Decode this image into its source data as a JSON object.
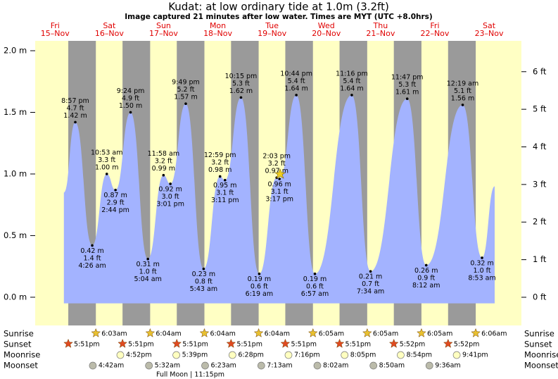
{
  "chart_data": {
    "type": "area",
    "title": "Kudat: at low  ordinary tide at 1.0m (3.2ft)",
    "subtitle": "Image captured 21 minutes after low water. Times are MYT (UTC +8.0hrs)",
    "days": [
      {
        "weekday": "Fri",
        "date": "15–Nov"
      },
      {
        "weekday": "Sat",
        "date": "16–Nov"
      },
      {
        "weekday": "Sun",
        "date": "17–Nov"
      },
      {
        "weekday": "Mon",
        "date": "18–Nov"
      },
      {
        "weekday": "Tue",
        "date": "19–Nov"
      },
      {
        "weekday": "Wed",
        "date": "20–Nov"
      },
      {
        "weekday": "Thu",
        "date": "21–Nov"
      },
      {
        "weekday": "Fri",
        "date": "22–Nov"
      },
      {
        "weekday": "Sat",
        "date": "23–Nov"
      }
    ],
    "ylim": [
      -0.229,
      2.08
    ],
    "yticks": [
      {
        "value": 0,
        "label": "0.0 m"
      },
      {
        "value": 0.5,
        "label": "0.5 m"
      },
      {
        "value": 1,
        "label": "1.0 m"
      },
      {
        "value": 1.5,
        "label": "1.5 m"
      },
      {
        "value": 2,
        "label": "2.0 m"
      }
    ],
    "y2lim": [
      -0.75,
      6.82
    ],
    "y2ticks": [
      {
        "value": 0,
        "label": "0 ft"
      },
      {
        "value": 1,
        "label": "1 ft"
      },
      {
        "value": 2,
        "label": "2 ft"
      },
      {
        "value": 3,
        "label": "3 ft"
      },
      {
        "value": 4,
        "label": "4 ft"
      },
      {
        "value": 5,
        "label": "5 ft"
      },
      {
        "value": 6,
        "label": "6 ft"
      }
    ],
    "color": "#a3b3ff",
    "day_color": "#ffffc4",
    "night_color": "#9a9a9a",
    "start_value": 0.85,
    "end_value": 0.9,
    "extremes": {
      "times": [
        "8:57 pm",
        "4:26 am",
        "10:53 am",
        "2:44 pm",
        "9:24 pm",
        "5:04 am",
        "11:58 am",
        "3:01 pm",
        "9:49 pm",
        "5:43 am",
        "12:59 pm",
        "3:11 pm",
        "10:15 pm",
        "6:19 am",
        "2:03 pm",
        "3:17 pm",
        "10:44 pm",
        "6:57 am",
        "11:16 pm",
        "7:34 am",
        "11:47 pm",
        "8:12 am",
        "12:19 am",
        "8:53 am"
      ],
      "values": [
        1.42,
        0.42,
        1.0,
        0.87,
        1.5,
        0.31,
        0.99,
        0.92,
        1.57,
        0.23,
        0.98,
        0.95,
        1.62,
        0.19,
        0.97,
        0.96,
        1.64,
        0.19,
        1.64,
        0.21,
        1.61,
        0.26,
        1.56,
        0.32
      ],
      "value_labels": [
        "1.42 m",
        "0.42 m",
        "1.00 m",
        "0.87 m",
        "1.50 m",
        "0.31 m",
        "0.99 m",
        "0.92 m",
        "1.57 m",
        "0.23 m",
        "0.98 m",
        "0.95 m",
        "1.62 m",
        "0.19 m",
        "0.97 m",
        "0.96 m",
        "1.64 m",
        "0.19 m",
        "1.64 m",
        "0.21 m",
        "1.61 m",
        "0.26 m",
        "1.56 m",
        "0.32 m"
      ],
      "ft_labels": [
        "4.7 ft",
        "1.4 ft",
        "3.3 ft",
        "2.9 ft",
        "4.9 ft",
        "1.0 ft",
        "3.2 ft",
        "3.0 ft",
        "5.2 ft",
        "0.8 ft",
        "3.2 ft",
        "3.1 ft",
        "5.3 ft",
        "0.6 ft",
        "3.2 ft",
        "3.1 ft",
        "5.4 ft",
        "0.6 ft",
        "5.4 ft",
        "0.7 ft",
        "5.3 ft",
        "0.9 ft",
        "5.1 ft",
        "1.0 ft"
      ]
    },
    "astro": {
      "row_labels": [
        "Sunrise",
        "Sunset",
        "Moonrise",
        "Moonset"
      ],
      "sunrise": [
        null,
        "6:03am",
        "6:04am",
        "6:04am",
        "6:04am",
        "6:05am",
        "6:05am",
        "6:05am",
        "6:06am"
      ],
      "sunset": [
        "5:51pm",
        "5:51pm",
        "5:51pm",
        "5:51pm",
        "5:51pm",
        "5:51pm",
        "5:52pm",
        "5:52pm",
        null
      ],
      "moonrise": [
        null,
        "4:52pm",
        "5:39pm",
        "6:28pm",
        "7:16pm",
        "8:05pm",
        "8:54pm",
        "9:41pm",
        null
      ],
      "moonset": [
        null,
        "4:42am",
        "5:32am",
        "6:23am",
        "7:13am",
        "8:02am",
        "8:50am",
        "9:36am",
        null
      ],
      "full_moon": "Full Moon | 11:15pm"
    }
  }
}
